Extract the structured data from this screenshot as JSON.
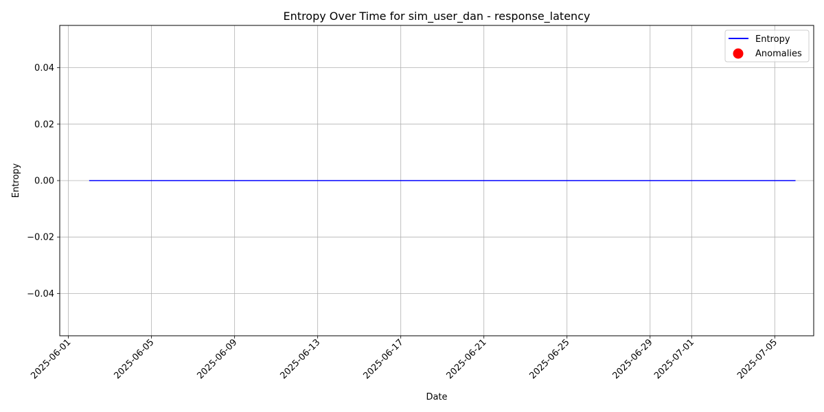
{
  "chart_data": {
    "type": "line",
    "title": "Entropy Over Time for sim_user_dan - response_latency",
    "xlabel": "Date",
    "ylabel": "Entropy",
    "x_ticks": [
      "2025-06-01",
      "2025-06-05",
      "2025-06-09",
      "2025-06-13",
      "2025-06-17",
      "2025-06-21",
      "2025-06-25",
      "2025-06-29",
      "2025-07-01",
      "2025-07-05"
    ],
    "y_ticks": [
      0.04,
      0.02,
      0.0,
      -0.02,
      -0.04
    ],
    "y_tick_labels": [
      "0.04",
      "0.02",
      "0.00",
      "−0.02",
      "−0.04"
    ],
    "xlim": [
      "2025-05-31T14:00",
      "2025-07-06T21:00"
    ],
    "ylim": [
      -0.055,
      0.055
    ],
    "grid": true,
    "legend_position": "top-right",
    "legend": [
      {
        "label": "Entropy",
        "marker": "line",
        "color": "#0000ff"
      },
      {
        "label": "Anomalies",
        "marker": "dot",
        "color": "#ff0000"
      }
    ],
    "series": [
      {
        "name": "Entropy",
        "color": "#0000ff",
        "x": [
          "2025-06-02",
          "2025-07-06"
        ],
        "y": [
          0.0,
          0.0
        ]
      },
      {
        "name": "Anomalies",
        "color": "#ff0000",
        "x": [],
        "y": []
      }
    ]
  }
}
